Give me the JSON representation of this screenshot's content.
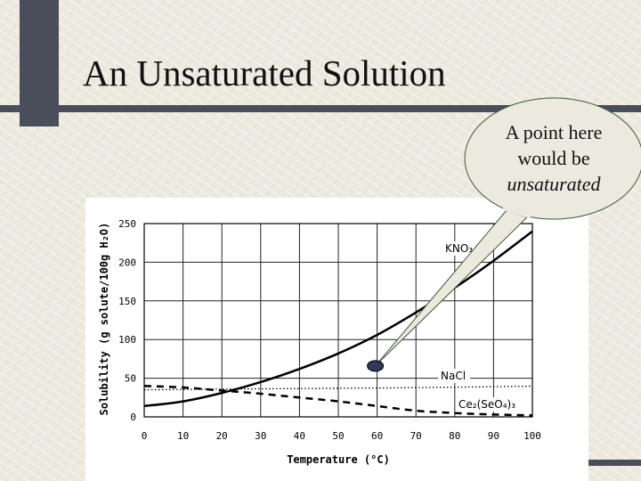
{
  "slide": {
    "title": "An Unsaturated Solution"
  },
  "callout": {
    "line1": "A point here",
    "line2": "would be",
    "line3": "unsaturated"
  },
  "colors": {
    "frame": "#4a4d5a",
    "callout_fill": "#eceadf",
    "marker": "#2f3a5a",
    "curve": "#000000"
  },
  "chart_data": {
    "type": "line",
    "title": "",
    "xlabel": "Temperature (°C)",
    "ylabel": "Solubility (g solute/100g H₂O)",
    "xlim": [
      0,
      100
    ],
    "ylim": [
      0,
      250
    ],
    "x_ticks": [
      0,
      10,
      20,
      30,
      40,
      50,
      60,
      70,
      80,
      90,
      100
    ],
    "y_ticks": [
      0,
      50,
      100,
      150,
      200,
      250
    ],
    "grid": true,
    "series": [
      {
        "name": "KNO3",
        "label": "KNO₃",
        "style": "solid",
        "x": [
          0,
          10,
          20,
          30,
          40,
          50,
          60,
          70,
          80,
          90,
          100
        ],
        "y": [
          14,
          20,
          31,
          45,
          62,
          82,
          106,
          135,
          167,
          202,
          240
        ]
      },
      {
        "name": "NaCl",
        "label": "NaCl",
        "style": "dotted",
        "x": [
          0,
          10,
          20,
          30,
          40,
          50,
          60,
          70,
          80,
          90,
          100
        ],
        "y": [
          35,
          35.5,
          36,
          36.3,
          36.6,
          37,
          37.3,
          37.8,
          38.4,
          39,
          39.8
        ]
      },
      {
        "name": "Ce2(SeO4)3",
        "label": "Ce₂(SeO₄)₃",
        "style": "dashed",
        "x": [
          0,
          10,
          20,
          30,
          40,
          50,
          60,
          70,
          80,
          90,
          100
        ],
        "y": [
          40,
          38,
          34,
          30,
          25,
          20,
          14,
          8,
          5,
          3,
          2
        ]
      }
    ],
    "annotations": [
      {
        "type": "point",
        "x": 60,
        "y": 82,
        "label": "unsaturated point"
      }
    ]
  }
}
